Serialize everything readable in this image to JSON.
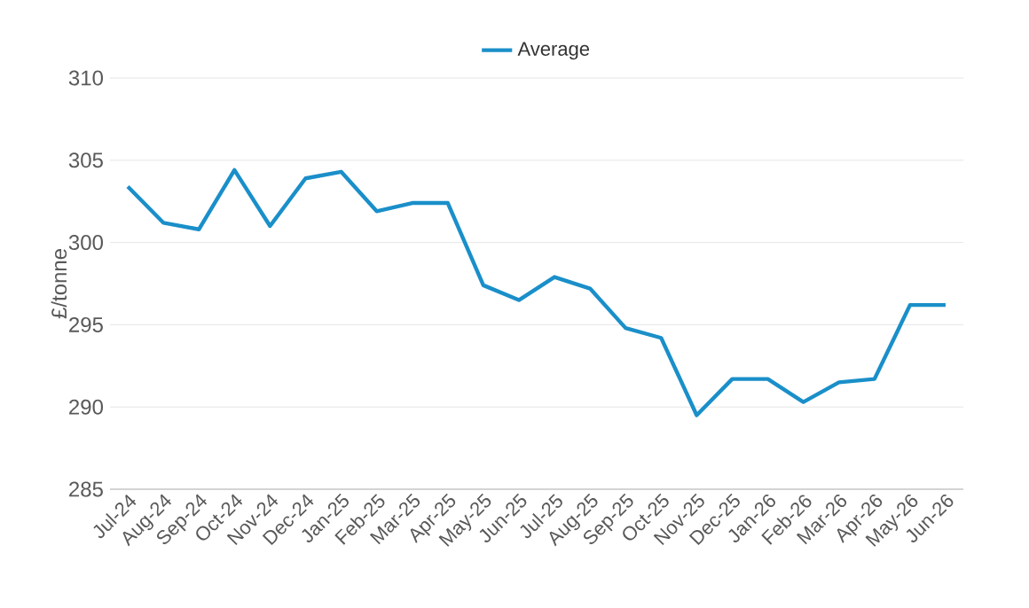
{
  "chart_data": {
    "type": "line",
    "ylabel": "£/tonne",
    "categories": [
      "Jul-24",
      "Aug-24",
      "Sep-24",
      "Oct-24",
      "Nov-24",
      "Dec-24",
      "Jan-25",
      "Feb-25",
      "Mar-25",
      "Apr-25",
      "May-25",
      "Jun-25",
      "Jul-25",
      "Aug-25",
      "Sep-25",
      "Oct-25",
      "Nov-25",
      "Dec-25",
      "Jan-26",
      "Feb-26",
      "Mar-26",
      "Apr-26",
      "May-26",
      "Jun-26"
    ],
    "series": [
      {
        "name": "Average",
        "color": "#1a8fc9",
        "values": [
          303.4,
          301.2,
          300.8,
          304.4,
          301.0,
          303.9,
          304.3,
          301.9,
          302.4,
          302.4,
          297.4,
          296.5,
          297.9,
          297.2,
          294.8,
          294.2,
          289.5,
          291.7,
          291.7,
          290.3,
          291.5,
          291.7,
          296.2,
          296.2
        ]
      }
    ],
    "ylim": [
      285,
      310
    ],
    "yticks": [
      285,
      290,
      295,
      300,
      305,
      310
    ],
    "grid": "y",
    "legend": "top",
    "marker": "none",
    "line_style": "solid"
  }
}
